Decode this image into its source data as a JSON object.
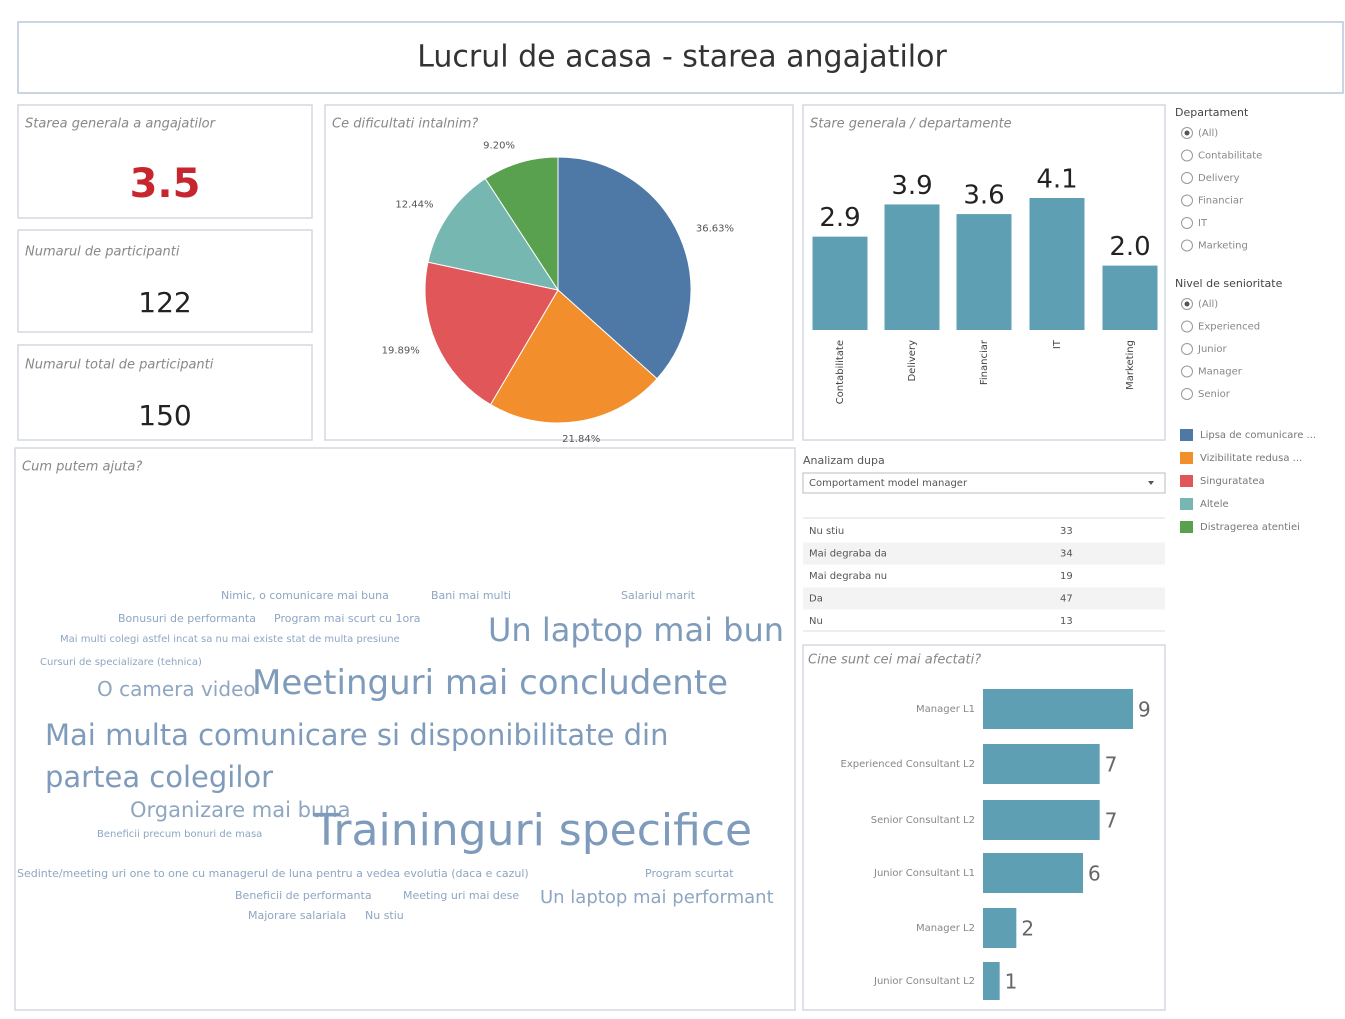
{
  "title": "Lucrul de acasa - starea angajatilor",
  "kpis": [
    {
      "label": "Starea generala a angajatilor",
      "value": 3.5
    },
    {
      "label": "Numarul de participanti",
      "value": 122
    },
    {
      "label": "Numarul total de participanti",
      "value": 150
    }
  ],
  "chart_data": [
    {
      "type": "pie",
      "title": "Ce dificultati intalnim?",
      "categories": [
        "Lipsa de comunicare ...",
        "Vizibilitate redusa ...",
        "Singuratatea",
        "Altele",
        "Distragerea atentiei"
      ],
      "values": [
        36.63,
        21.84,
        19.89,
        12.44,
        9.2
      ],
      "value_labels": [
        "36.63%",
        "21.84%",
        "19.89%",
        "12.44%",
        "9.20%"
      ],
      "colors": [
        "#4e79a7",
        "#f28e2b",
        "#e15759",
        "#76b7b2",
        "#59a14f"
      ]
    },
    {
      "type": "bar",
      "title": "Stare generala / departamente",
      "categories": [
        "Contabilitate",
        "Delivery",
        "Financiar",
        "IT",
        "Marketing"
      ],
      "values": [
        2.9,
        3.9,
        3.6,
        4.1,
        2.0
      ],
      "value_labels": [
        "2.9",
        "3.9",
        "3.6",
        "4.1",
        "2.0"
      ],
      "color": "#5f9fb3"
    },
    {
      "type": "bar",
      "orientation": "horizontal",
      "title": "Cine sunt cei mai afectati?",
      "categories": [
        "Manager L1",
        "Experienced Consultant L2",
        "Senior Consultant L2",
        "Junior Consultant L1",
        "Manager L2",
        "Junior Consultant L2"
      ],
      "values": [
        9,
        7,
        7,
        6,
        2,
        1
      ],
      "color": "#5f9fb3"
    }
  ],
  "filters": [
    {
      "label": "Departament",
      "options": [
        "(All)",
        "Contabilitate",
        "Delivery",
        "Financiar",
        "IT",
        "Marketing"
      ]
    },
    {
      "label": "Nivel de senioritate",
      "options": [
        "(All)",
        "Experienced",
        "Junior",
        "Manager",
        "Senior"
      ]
    }
  ],
  "table": {
    "label": "Analizam dupa",
    "dropdown": "Comportament model manager",
    "rows": [
      [
        "Nu stiu",
        33
      ],
      [
        "Mai degraba da",
        34
      ],
      [
        "Mai degraba nu",
        19
      ],
      [
        "Da",
        47
      ],
      [
        "Nu",
        13
      ]
    ]
  },
  "word_cloud": {
    "title": "Cum putem ajuta?",
    "words": [
      "Nimic, o comunicare mai buna",
      "Bani mai multi",
      "Salariul marit",
      "Bonusuri de performanta",
      "Program mai scurt cu 1ora",
      "Mai multi colegi astfel incat sa nu mai existe stat de multa presiune",
      "Un laptop mai bun",
      "Cursuri de specializare (tehnica)",
      "O camera video",
      "Meetinguri mai concludente",
      "Mai multa comunicare si disponibilitate din partea colegilor",
      "Organizare mai buna",
      "Beneficii precum bonuri de masa",
      "Traininguri specifice",
      "Sedinte/meeting uri one to one cu managerul de luna pentru a vedea evolutia (daca e cazul)",
      "Program scurtat",
      "Beneficii de performanta",
      "Meeting uri mai dese",
      "Un laptop mai performant",
      "Majorare salariala",
      "Nu stiu"
    ]
  }
}
